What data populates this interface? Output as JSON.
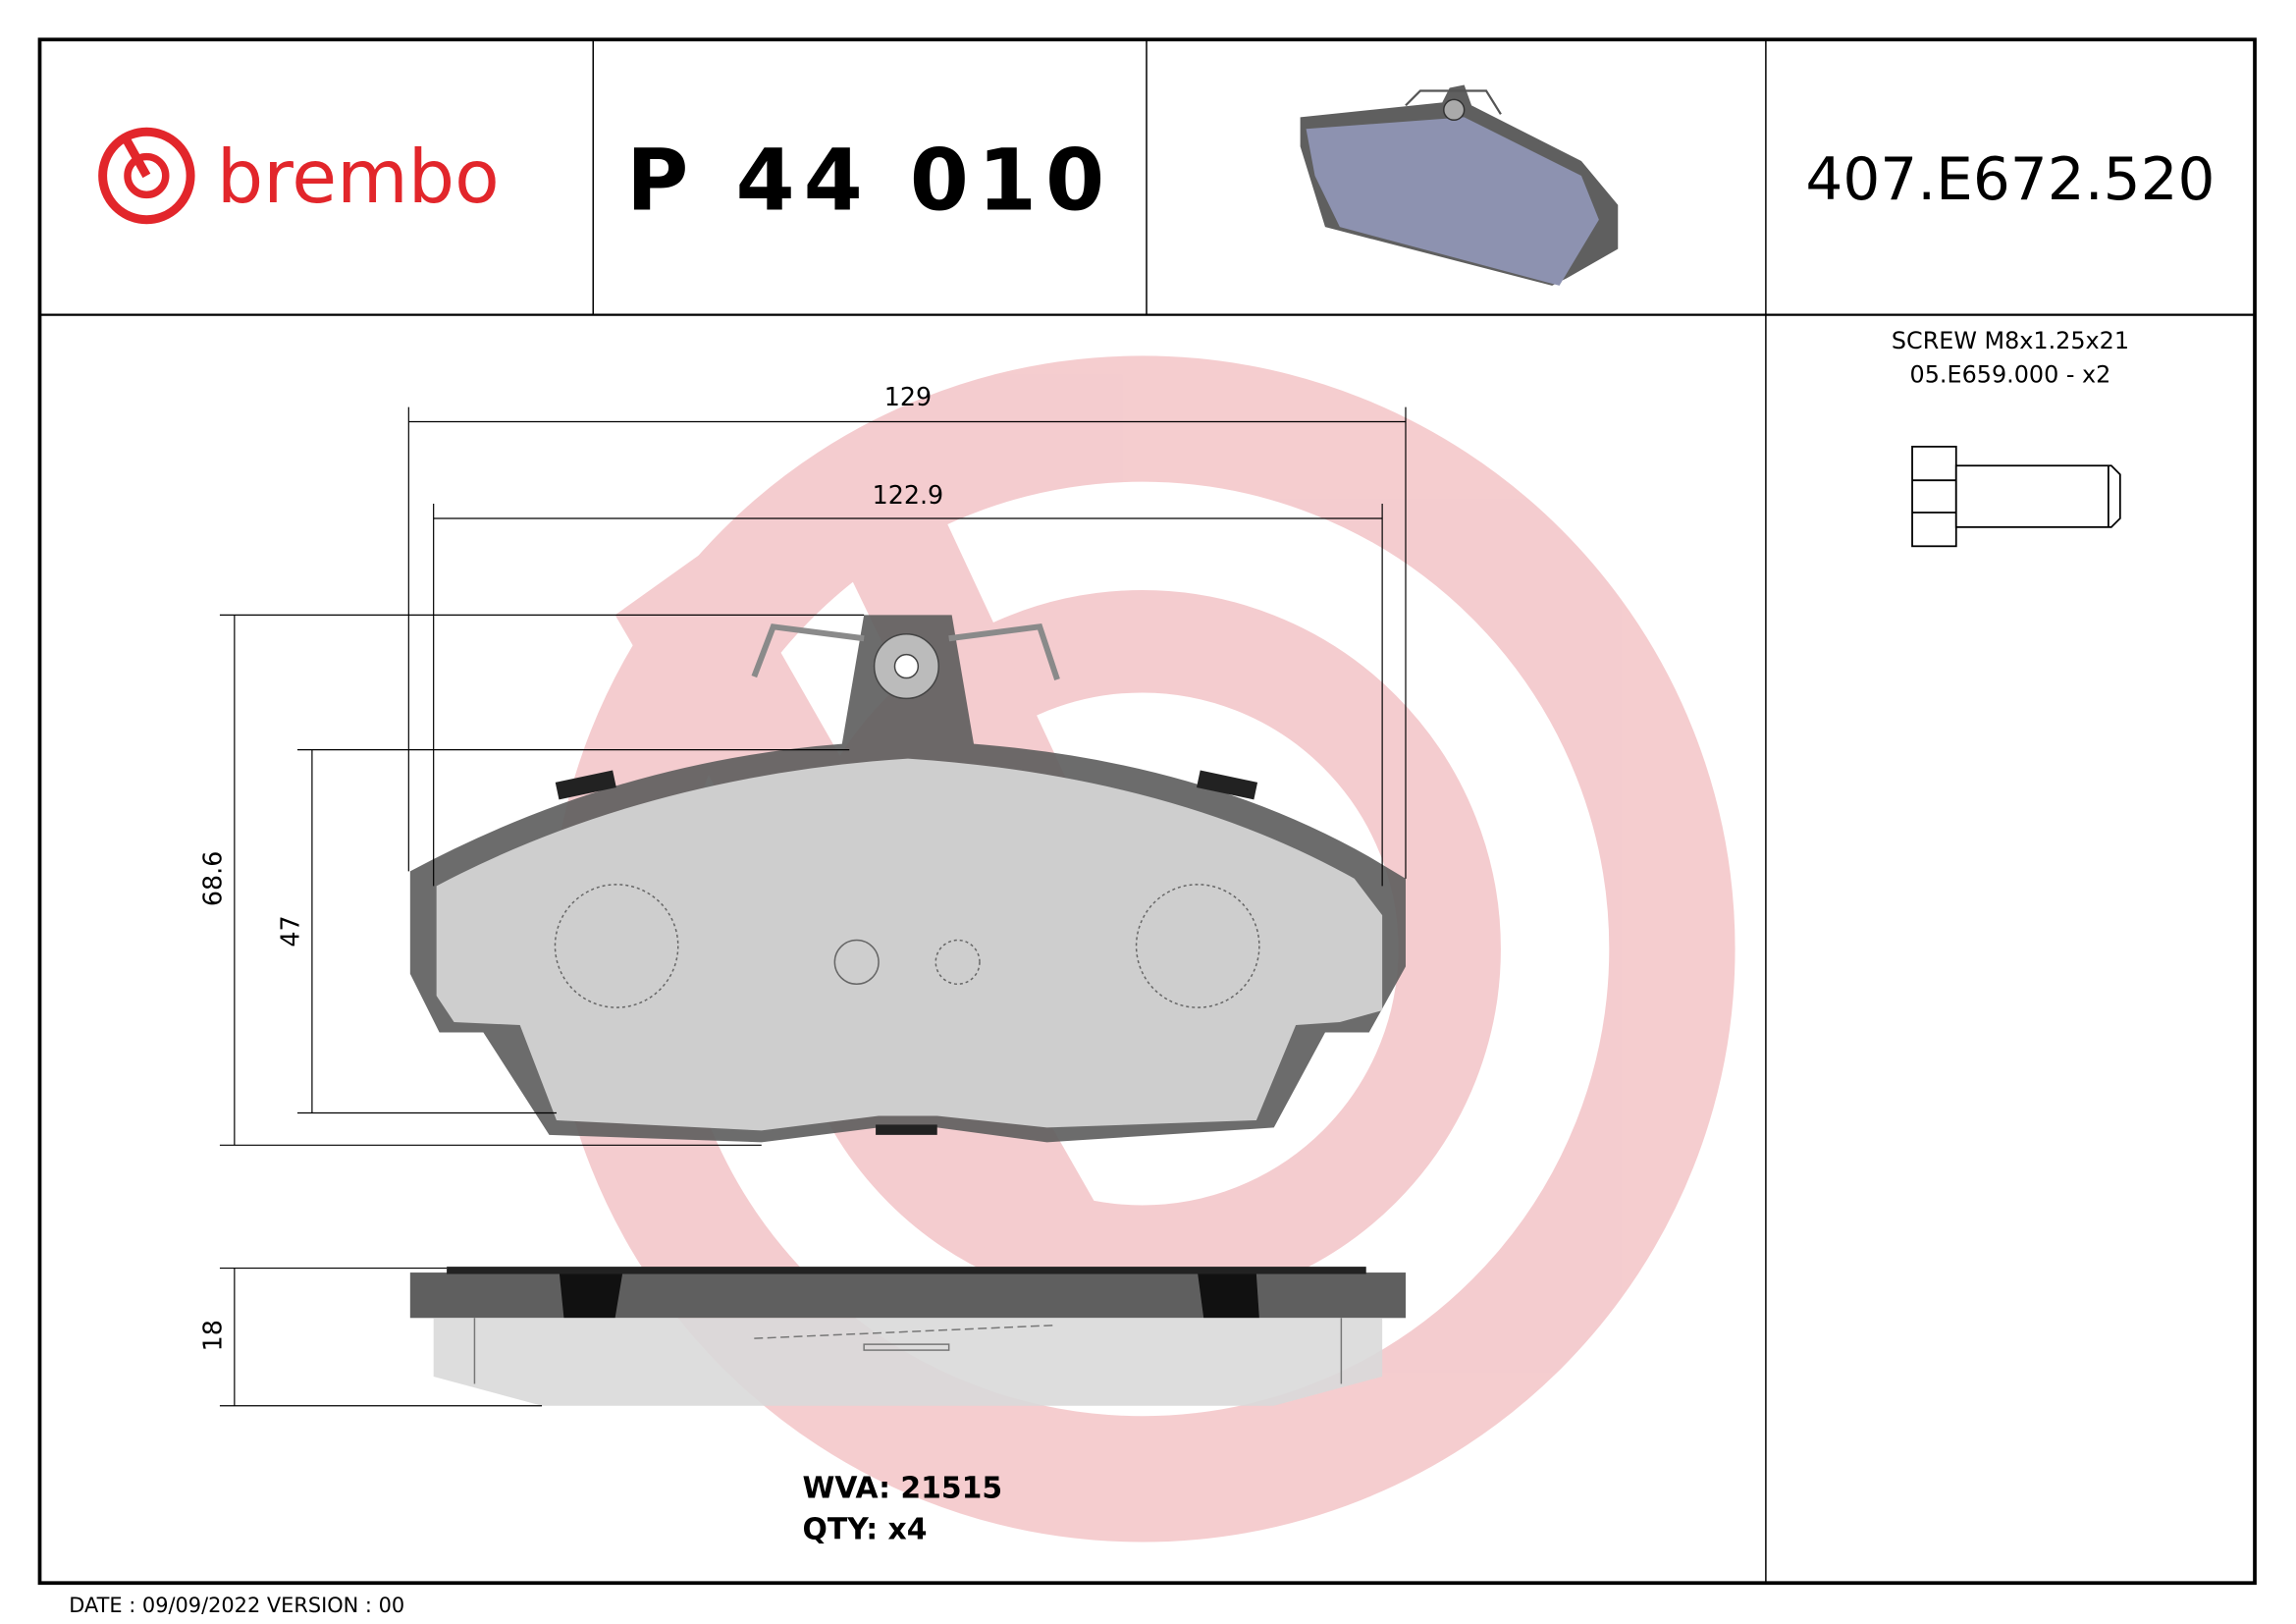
{
  "header": {
    "brand": "brembo",
    "part_number": "P 44 010",
    "code": "407.E672.520"
  },
  "accessory": {
    "line1": "SCREW M8x1.25x21",
    "line2": "05.E659.000 - x2"
  },
  "dimensions": {
    "overall_width": "129",
    "inner_width": "122.9",
    "overall_height": "68.6",
    "pad_height": "47",
    "thickness": "18"
  },
  "info": {
    "wva": "WVA: 21515",
    "qty": "QTY: x4"
  },
  "footer": {
    "text": "DATE : 09/09/2022 VERSION : 00"
  },
  "colors": {
    "brand_red": "#e2262b",
    "watermark": "#f3c4c7",
    "backplate": "#5f5f5f",
    "friction": "#d9d9d9",
    "thumbnail": "#8d92b0"
  }
}
